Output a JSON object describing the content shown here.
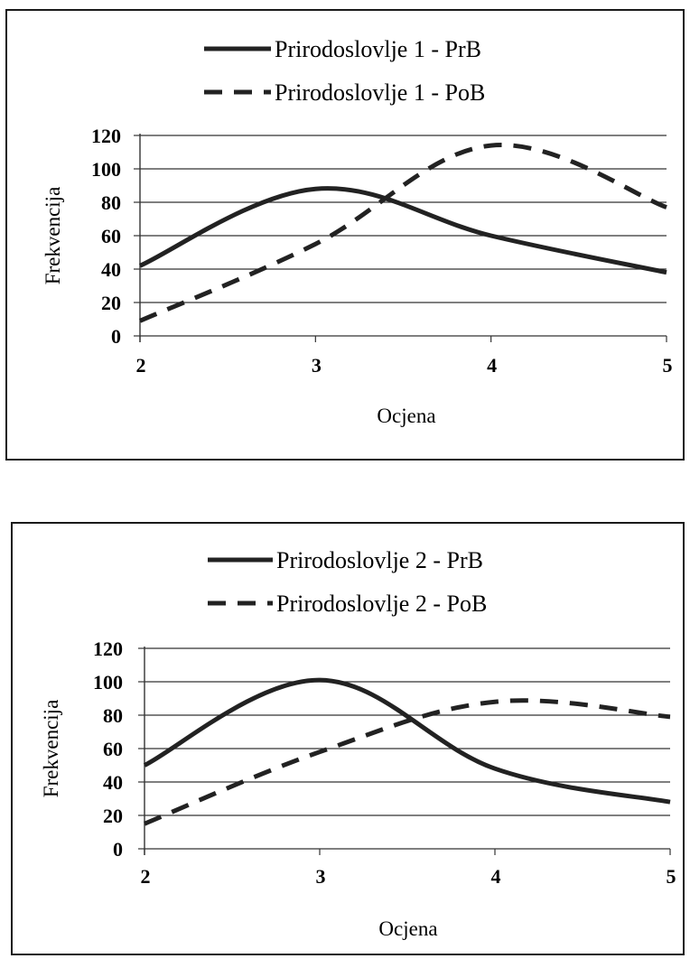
{
  "chart_data": [
    {
      "type": "line",
      "x": [
        2,
        3,
        4,
        5
      ],
      "series": [
        {
          "name": "Prirodoslovlje 1 - PrB",
          "style": "solid",
          "values": [
            42,
            88,
            60,
            38
          ]
        },
        {
          "name": "Prirodoslovlje 1 - PoB",
          "style": "dashed",
          "values": [
            9,
            55,
            114,
            77
          ]
        }
      ],
      "xlabel": "Ocjena",
      "ylabel": "Frekvencija",
      "xticks": [
        "2",
        "3",
        "4",
        "5"
      ],
      "yticks": [
        "0",
        "20",
        "40",
        "60",
        "80",
        "100",
        "120"
      ],
      "ylim": [
        0,
        120
      ],
      "xlim": [
        2,
        5
      ],
      "grid": "horizontal",
      "legend": "top-center",
      "color": "#222222"
    },
    {
      "type": "line",
      "x": [
        2,
        3,
        4,
        5
      ],
      "series": [
        {
          "name": "Prirodoslovlje 2 - PrB",
          "style": "solid",
          "values": [
            50,
            101,
            48,
            28
          ]
        },
        {
          "name": "Prirodoslovlje 2 - PoB",
          "style": "dashed",
          "values": [
            15,
            58,
            88,
            79
          ]
        }
      ],
      "xlabel": "Ocjena",
      "ylabel": "Frekvencija",
      "xticks": [
        "2",
        "3",
        "4",
        "5"
      ],
      "yticks": [
        "0",
        "20",
        "40",
        "60",
        "80",
        "100",
        "120"
      ],
      "ylim": [
        0,
        120
      ],
      "xlim": [
        2,
        5
      ],
      "grid": "horizontal",
      "legend": "top-center",
      "color": "#222222"
    }
  ]
}
